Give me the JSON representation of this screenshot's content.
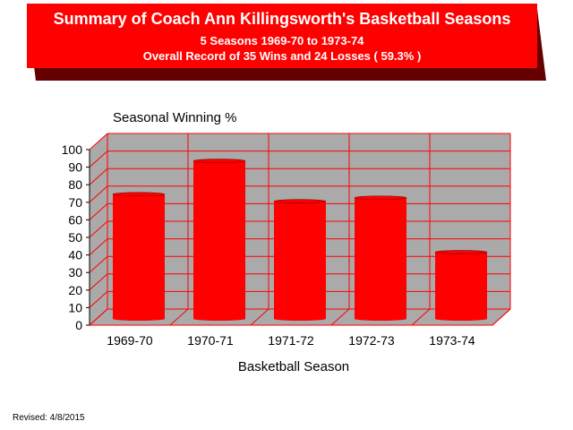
{
  "header": {
    "title": "Summary of Coach Ann Killingsworth's Basketball Seasons",
    "subtitle_seasons": "5 Seasons   1969-70 to 1973-74",
    "subtitle_record": "Overall Record of 35 Wins and 24 Losses ( 59.3% )"
  },
  "footer": {
    "revised": "Revised: 4/8/2015"
  },
  "colors": {
    "bar": "#ff0000",
    "panel": "#aaaaaa",
    "gridline": "#ff0000",
    "banner": "#ff0000",
    "banner_shadow": "#660000"
  },
  "chart_data": {
    "type": "bar",
    "title": "Seasonal Winning %",
    "xlabel": "Basketball Season",
    "ylabel": "",
    "categories": [
      "1969-70",
      "1970-71",
      "1971-72",
      "1972-73",
      "1973-74"
    ],
    "values": [
      71,
      90,
      67,
      69,
      38
    ],
    "ylim": [
      0,
      100
    ],
    "yticks": [
      "0",
      "10",
      "20",
      "30",
      "40",
      "50",
      "60",
      "70",
      "80",
      "90",
      "100"
    ],
    "grid": true,
    "legend": "none"
  }
}
